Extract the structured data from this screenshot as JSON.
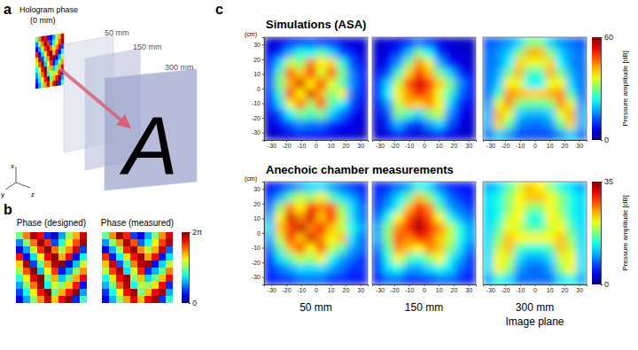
{
  "panel_labels": [
    "a",
    "b",
    "c"
  ],
  "diagram": {
    "hologram_label": "Hologram phase",
    "hologram_depth": "(0 mm)",
    "planes": [
      "50 mm",
      "150 mm",
      "300 mm"
    ],
    "image_letter": "A",
    "axes": [
      "x",
      "y",
      "z"
    ]
  },
  "row_titles": [
    "Simulations (ASA)",
    "Anechoic chamber measurements"
  ],
  "image_plane_label": "Image plane",
  "chart_data": [
    {
      "type": "heatmap",
      "title": "Phase (designed)",
      "tick_labels": false,
      "cells": [
        [
          3.1,
          4.7,
          6.0,
          5.5,
          1.0,
          0.5,
          1.8,
          3.3,
          4.4,
          5.8
        ],
        [
          1.6,
          3.2,
          4.8,
          6.1,
          5.2,
          1.2,
          2.6,
          3.8,
          5.0,
          6.1
        ],
        [
          0.6,
          1.8,
          3.6,
          5.2,
          6.2,
          4.8,
          3.4,
          4.6,
          5.8,
          1.2
        ],
        [
          5.4,
          0.8,
          2.2,
          4.0,
          5.6,
          6.2,
          4.4,
          5.6,
          0.8,
          2.4
        ],
        [
          4.2,
          6.0,
          1.2,
          3.0,
          4.6,
          6.0,
          6.2,
          0.6,
          2.0,
          3.6
        ],
        [
          3.4,
          5.0,
          6.2,
          2.0,
          3.8,
          5.2,
          0.9,
          1.8,
          3.2,
          4.6
        ],
        [
          2.6,
          4.0,
          5.6,
          6.2,
          3.0,
          4.4,
          2.0,
          3.0,
          4.4,
          5.6
        ],
        [
          1.8,
          3.2,
          4.8,
          6.1,
          2.4,
          3.6,
          3.2,
          4.2,
          5.4,
          0.8
        ],
        [
          1.2,
          2.4,
          4.0,
          5.4,
          6.2,
          3.0,
          4.4,
          5.4,
          6.2,
          1.8
        ],
        [
          0.6,
          1.8,
          3.2,
          4.6,
          5.8,
          4.2,
          5.6,
          6.2,
          1.0,
          2.8
        ]
      ]
    },
    {
      "type": "heatmap",
      "title": "Phase (measured)",
      "tick_labels": false,
      "cells": [
        [
          3.0,
          4.6,
          6.1,
          5.3,
          1.2,
          0.6,
          1.9,
          3.2,
          4.6,
          5.7
        ],
        [
          1.7,
          3.3,
          4.6,
          6.0,
          5.0,
          1.4,
          2.5,
          3.9,
          5.1,
          6.0
        ],
        [
          0.7,
          1.9,
          3.4,
          5.3,
          6.1,
          4.6,
          3.5,
          4.4,
          5.9,
          1.4
        ],
        [
          5.2,
          0.9,
          2.4,
          4.1,
          5.4,
          6.1,
          4.5,
          5.5,
          0.9,
          2.2
        ],
        [
          4.3,
          5.8,
          1.3,
          2.8,
          4.7,
          5.9,
          6.1,
          0.8,
          2.1,
          3.5
        ],
        [
          3.5,
          5.1,
          6.0,
          2.2,
          3.7,
          5.3,
          1.0,
          1.9,
          3.0,
          4.7
        ],
        [
          2.5,
          4.1,
          5.5,
          6.1,
          3.2,
          4.3,
          2.1,
          3.1,
          4.3,
          5.5
        ],
        [
          1.9,
          3.1,
          4.9,
          6.0,
          2.5,
          3.5,
          3.3,
          4.1,
          5.5,
          1.0
        ],
        [
          1.1,
          2.5,
          3.9,
          5.5,
          6.1,
          3.1,
          4.3,
          5.5,
          6.1,
          1.9
        ],
        [
          0.7,
          1.9,
          3.3,
          4.5,
          5.7,
          4.3,
          5.5,
          6.1,
          1.1,
          2.7
        ]
      ],
      "colorbar": {
        "range": [
          0,
          6.283
        ],
        "ticks": [
          0,
          {
            "value": 6.283,
            "label": "2π"
          }
        ]
      }
    },
    {
      "type": "heatmap",
      "ylabel": "(cm)",
      "xlim": [
        -35,
        35
      ],
      "ylim": [
        -35,
        35
      ],
      "xticks": [
        -30,
        -20,
        -10,
        0,
        10,
        20,
        30
      ],
      "yticks": [
        30,
        20,
        10,
        0,
        -10,
        -20,
        -30
      ],
      "cells": [
        [
          5,
          5,
          8,
          10,
          12,
          10,
          8,
          6,
          5,
          5
        ],
        [
          6,
          10,
          18,
          25,
          22,
          28,
          20,
          12,
          8,
          5
        ],
        [
          8,
          20,
          35,
          30,
          45,
          38,
          40,
          25,
          12,
          6
        ],
        [
          10,
          28,
          48,
          40,
          52,
          35,
          48,
          30,
          15,
          8
        ],
        [
          12,
          30,
          42,
          55,
          38,
          50,
          36,
          28,
          16,
          8
        ],
        [
          10,
          26,
          50,
          38,
          54,
          42,
          30,
          38,
          14,
          7
        ],
        [
          8,
          20,
          36,
          46,
          32,
          48,
          28,
          22,
          12,
          6
        ],
        [
          6,
          12,
          22,
          30,
          26,
          30,
          20,
          14,
          8,
          5
        ],
        [
          5,
          8,
          12,
          16,
          14,
          14,
          10,
          8,
          6,
          5
        ],
        [
          4,
          5,
          6,
          8,
          8,
          7,
          6,
          5,
          5,
          4
        ]
      ]
    },
    {
      "type": "heatmap",
      "tick_labels": "x",
      "xlim": [
        -35,
        35
      ],
      "ylim": [
        -35,
        35
      ],
      "xticks": [
        -30,
        -20,
        -10,
        0,
        10,
        20,
        30
      ],
      "cells": [
        [
          4,
          5,
          6,
          8,
          14,
          10,
          6,
          5,
          4,
          4
        ],
        [
          5,
          6,
          10,
          18,
          30,
          22,
          10,
          6,
          5,
          4
        ],
        [
          5,
          8,
          16,
          30,
          44,
          36,
          18,
          8,
          6,
          5
        ],
        [
          6,
          12,
          26,
          40,
          50,
          42,
          30,
          20,
          10,
          6
        ],
        [
          8,
          20,
          34,
          48,
          55,
          50,
          40,
          30,
          16,
          8
        ],
        [
          8,
          22,
          38,
          44,
          52,
          46,
          36,
          26,
          14,
          8
        ],
        [
          6,
          16,
          34,
          42,
          40,
          44,
          38,
          20,
          10,
          6
        ],
        [
          5,
          12,
          30,
          26,
          20,
          30,
          34,
          16,
          8,
          5
        ],
        [
          5,
          10,
          18,
          12,
          10,
          16,
          20,
          12,
          6,
          5
        ],
        [
          4,
          6,
          8,
          6,
          5,
          6,
          8,
          6,
          5,
          4
        ]
      ]
    },
    {
      "type": "heatmap",
      "tick_labels": "x",
      "xlim": [
        -35,
        35
      ],
      "ylim": [
        -35,
        35
      ],
      "xticks": [
        -30,
        -20,
        -10,
        0,
        10,
        20,
        30
      ],
      "cells": [
        [
          12,
          14,
          16,
          20,
          30,
          30,
          20,
          16,
          14,
          12
        ],
        [
          14,
          16,
          20,
          30,
          42,
          42,
          30,
          20,
          16,
          14
        ],
        [
          14,
          16,
          22,
          40,
          36,
          36,
          40,
          22,
          16,
          14
        ],
        [
          14,
          18,
          30,
          42,
          26,
          26,
          42,
          30,
          18,
          14
        ],
        [
          14,
          20,
          38,
          36,
          22,
          22,
          36,
          38,
          20,
          14
        ],
        [
          14,
          26,
          44,
          42,
          40,
          40,
          42,
          44,
          26,
          14
        ],
        [
          16,
          36,
          44,
          30,
          28,
          28,
          30,
          44,
          36,
          16
        ],
        [
          18,
          42,
          36,
          20,
          18,
          18,
          20,
          36,
          42,
          18
        ],
        [
          18,
          40,
          28,
          16,
          14,
          14,
          16,
          28,
          40,
          18
        ],
        [
          14,
          20,
          16,
          12,
          12,
          12,
          12,
          16,
          20,
          14
        ]
      ],
      "colorbar": {
        "label": "Pressure amplitude [dB]",
        "range": [
          0,
          60
        ],
        "ticks": [
          0,
          60
        ]
      }
    },
    {
      "type": "heatmap",
      "ylabel": "(cm)",
      "xlabel": "50 mm",
      "xlim": [
        -35,
        35
      ],
      "ylim": [
        -35,
        35
      ],
      "xticks": [
        -30,
        -20,
        -10,
        0,
        10,
        20,
        30
      ],
      "yticks": [
        30,
        20,
        10,
        0,
        -10,
        -20,
        -30
      ],
      "cells": [
        [
          4,
          6,
          8,
          10,
          12,
          12,
          10,
          8,
          6,
          5
        ],
        [
          6,
          10,
          16,
          20,
          18,
          22,
          16,
          12,
          10,
          6
        ],
        [
          8,
          18,
          26,
          22,
          30,
          26,
          28,
          18,
          12,
          8
        ],
        [
          10,
          22,
          32,
          26,
          32,
          24,
          30,
          20,
          12,
          8
        ],
        [
          12,
          24,
          28,
          33,
          26,
          30,
          24,
          20,
          14,
          10
        ],
        [
          10,
          20,
          30,
          24,
          32,
          26,
          22,
          24,
          12,
          8
        ],
        [
          8,
          16,
          24,
          28,
          22,
          28,
          20,
          16,
          10,
          8
        ],
        [
          6,
          12,
          16,
          20,
          18,
          22,
          14,
          10,
          8,
          6
        ],
        [
          6,
          8,
          10,
          12,
          12,
          12,
          10,
          8,
          6,
          6
        ],
        [
          5,
          6,
          6,
          8,
          8,
          8,
          6,
          6,
          5,
          5
        ]
      ]
    },
    {
      "type": "heatmap",
      "tick_labels": "x",
      "xlabel": "150 mm",
      "xlim": [
        -35,
        35
      ],
      "ylim": [
        -35,
        35
      ],
      "xticks": [
        -30,
        -20,
        -10,
        0,
        10,
        20,
        30
      ],
      "cells": [
        [
          5,
          6,
          8,
          10,
          14,
          12,
          8,
          6,
          5,
          5
        ],
        [
          6,
          8,
          12,
          16,
          24,
          18,
          12,
          8,
          6,
          5
        ],
        [
          6,
          10,
          14,
          24,
          30,
          26,
          16,
          10,
          8,
          6
        ],
        [
          8,
          14,
          22,
          28,
          32,
          28,
          22,
          14,
          10,
          8
        ],
        [
          10,
          18,
          26,
          30,
          34,
          30,
          26,
          20,
          14,
          10
        ],
        [
          10,
          18,
          28,
          26,
          30,
          28,
          24,
          20,
          14,
          10
        ],
        [
          8,
          16,
          26,
          24,
          22,
          26,
          24,
          18,
          12,
          8
        ],
        [
          6,
          14,
          22,
          16,
          14,
          18,
          22,
          14,
          10,
          6
        ],
        [
          6,
          12,
          14,
          10,
          10,
          12,
          14,
          12,
          8,
          6
        ],
        [
          5,
          8,
          8,
          6,
          6,
          6,
          8,
          8,
          6,
          5
        ]
      ]
    },
    {
      "type": "heatmap",
      "tick_labels": "x",
      "xlabel": "300 mm",
      "xlim": [
        -35,
        35
      ],
      "ylim": [
        -35,
        35
      ],
      "xticks": [
        -30,
        -20,
        -10,
        0,
        10,
        20,
        30
      ],
      "cells": [
        [
          10,
          12,
          16,
          20,
          24,
          22,
          18,
          14,
          12,
          10
        ],
        [
          12,
          14,
          18,
          22,
          24,
          24,
          22,
          18,
          14,
          12
        ],
        [
          12,
          14,
          18,
          22,
          18,
          18,
          22,
          18,
          14,
          12
        ],
        [
          12,
          14,
          20,
          22,
          14,
          14,
          22,
          20,
          14,
          12
        ],
        [
          12,
          16,
          22,
          20,
          16,
          16,
          20,
          22,
          16,
          12
        ],
        [
          12,
          18,
          24,
          22,
          22,
          22,
          22,
          24,
          18,
          12
        ],
        [
          12,
          20,
          24,
          16,
          14,
          14,
          16,
          24,
          20,
          12
        ],
        [
          12,
          22,
          20,
          12,
          10,
          10,
          12,
          20,
          22,
          12
        ],
        [
          12,
          22,
          18,
          10,
          8,
          8,
          10,
          18,
          22,
          12
        ],
        [
          10,
          14,
          12,
          8,
          8,
          8,
          8,
          12,
          14,
          10
        ]
      ],
      "colorbar": {
        "label": "Pressure amplitude [dB]",
        "range": [
          0,
          35
        ],
        "ticks": [
          0,
          35
        ]
      }
    }
  ]
}
